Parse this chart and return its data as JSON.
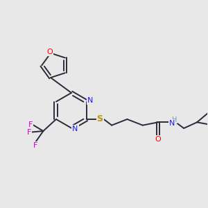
{
  "background_color": "#e8e8e8",
  "bond_color": "#2a2a3a",
  "atom_colors": {
    "O": "#ff0000",
    "N": "#1a1aff",
    "S": "#b8960a",
    "F": "#cc00cc",
    "H": "#6699bb",
    "C": "#2a2a3a"
  },
  "figsize": [
    3.0,
    3.0
  ],
  "dpi": 100
}
